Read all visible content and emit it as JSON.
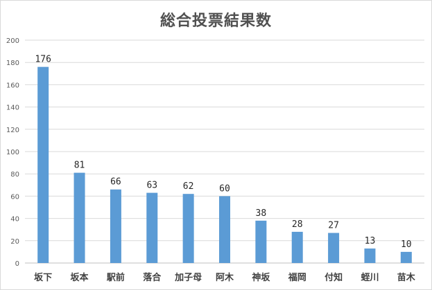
{
  "chart_data": {
    "type": "bar",
    "title": "総合投票結果数",
    "xlabel": "",
    "ylabel": "",
    "categories": [
      "坂下",
      "坂本",
      "駅前",
      "落合",
      "加子母",
      "阿木",
      "神坂",
      "福岡",
      "付知",
      "蛭川",
      "苗木"
    ],
    "values": [
      176,
      81,
      66,
      63,
      62,
      60,
      38,
      28,
      27,
      13,
      10
    ],
    "ylim": [
      0,
      200
    ],
    "yticks": [
      0,
      20,
      40,
      60,
      80,
      100,
      120,
      140,
      160,
      180,
      200
    ],
    "grid": true,
    "legend": "none",
    "bar_color": "#5b9bd5",
    "data_labels": true
  }
}
